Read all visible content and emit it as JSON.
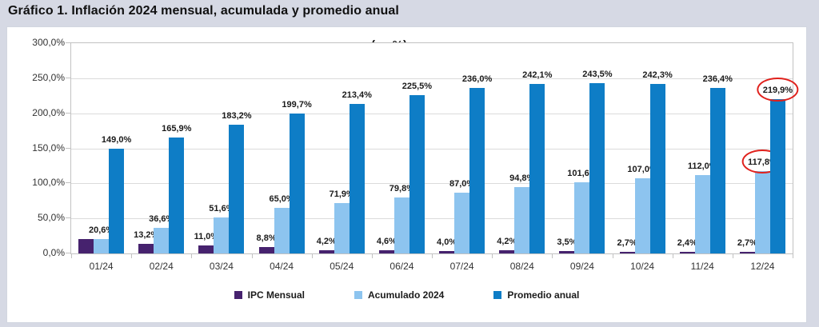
{
  "title": "Gráfico 1. Inflación 2024 mensual, acumulada y promedio anual",
  "chart_data": {
    "type": "bar",
    "title": "Gráfico 1. Inflación 2024 mensual, acumulada y promedio anual",
    "subtitle": "(en %)",
    "unit": "%",
    "categories": [
      "01/24",
      "02/24",
      "03/24",
      "04/24",
      "05/24",
      "06/24",
      "07/24",
      "08/24",
      "09/24",
      "10/24",
      "11/24",
      "12/24"
    ],
    "series": [
      {
        "name": "IPC Mensual",
        "color": "#46226e",
        "values": [
          20.6,
          13.2,
          11.0,
          8.8,
          4.2,
          4.6,
          4.0,
          4.2,
          3.5,
          2.7,
          2.4,
          2.7
        ],
        "labels": [
          null,
          "13,2%",
          "11,0%",
          "8,8%",
          "4,2%",
          "4,6%",
          "4,0%",
          "4,2%",
          "3,5%",
          "2,7%",
          "2,4%",
          "2,7%"
        ]
      },
      {
        "name": "Acumulado 2024",
        "color": "#8dc4ef",
        "values": [
          20.6,
          36.6,
          51.6,
          65.0,
          71.9,
          79.8,
          87.0,
          94.8,
          101.6,
          107.0,
          112.0,
          117.8
        ],
        "labels": [
          "20,6%",
          "36,6%",
          "51,6%",
          "65,0%",
          "71,9%",
          "79,8%",
          "87,0%",
          "94,8%",
          "101,6%",
          "107,0%",
          "112,0%",
          "117,8%"
        ]
      },
      {
        "name": "Promedio anual",
        "color": "#0e7dc6",
        "values": [
          149.0,
          165.9,
          183.2,
          199.7,
          213.4,
          225.5,
          236.0,
          242.1,
          243.5,
          242.3,
          236.4,
          219.9
        ],
        "labels": [
          "149,0%",
          "165,9%",
          "183,2%",
          "199,7%",
          "213,4%",
          "225,5%",
          "236,0%",
          "242,1%",
          "243,5%",
          "242,3%",
          "236,4%",
          "219,9%"
        ]
      }
    ],
    "y_axis": {
      "min": 0,
      "max": 300,
      "step": 50,
      "tick_labels": [
        "0,0%",
        "50,0%",
        "100,0%",
        "150,0%",
        "200,0%",
        "250,0%",
        "300,0%"
      ]
    },
    "grid": true,
    "legend_position": "bottom",
    "annotations": {
      "circle_color": "#e0211c",
      "circled": [
        {
          "series": "Acumulado 2024",
          "category": "12/24",
          "label": "117,8%"
        },
        {
          "series": "Promedio anual",
          "category": "12/24",
          "label": "219,9%"
        }
      ]
    }
  }
}
